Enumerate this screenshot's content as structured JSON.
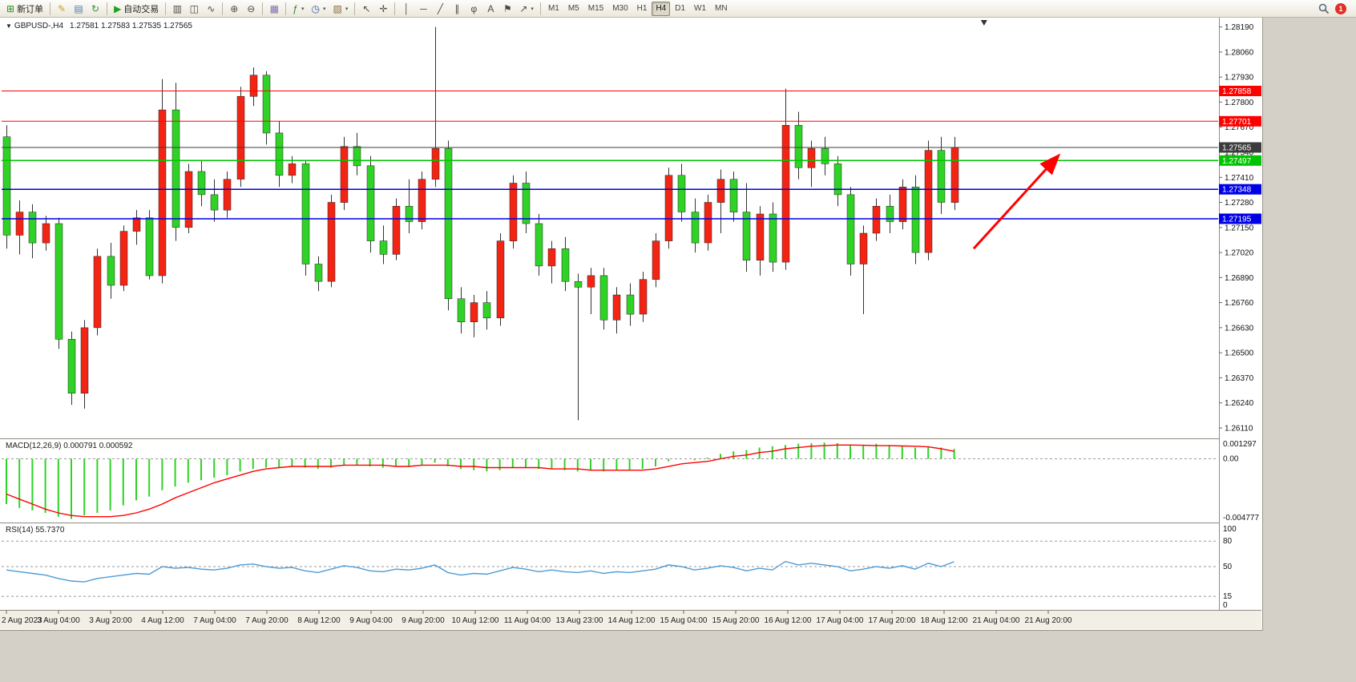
{
  "toolbar": {
    "notification_count": "1",
    "timeframes": [
      "M1",
      "M5",
      "M15",
      "M30",
      "H1",
      "H4",
      "D1",
      "W1",
      "MN"
    ],
    "active_timeframe": "H4",
    "groups": [
      {
        "name": "trade",
        "items": [
          {
            "name": "new-order",
            "glyph": "⊞",
            "glyph_color": "#1f8f1f",
            "label": "新订单"
          }
        ]
      },
      {
        "name": "quick-access",
        "items": [
          {
            "name": "metaeditor",
            "glyph": "✎",
            "glyph_color": "#c9a227"
          },
          {
            "name": "market-watch",
            "glyph": "▤",
            "glyph_color": "#4a7ab5"
          },
          {
            "name": "refresh",
            "glyph": "↻",
            "glyph_color": "#3a8f3a"
          }
        ]
      },
      {
        "name": "autotrade",
        "items": [
          {
            "name": "auto-trading",
            "glyph": "▶",
            "glyph_color": "#1fa11f",
            "label": "自动交易"
          }
        ]
      },
      {
        "name": "chart-type",
        "items": [
          {
            "name": "bar-chart",
            "glyph": "▥"
          },
          {
            "name": "candlestick-chart",
            "glyph": "◫"
          },
          {
            "name": "line-chart",
            "glyph": "∿"
          }
        ]
      },
      {
        "name": "zoom",
        "items": [
          {
            "name": "zoom-in",
            "glyph": "⊕"
          },
          {
            "name": "zoom-out",
            "glyph": "⊖"
          }
        ]
      },
      {
        "name": "windows",
        "items": [
          {
            "name": "tile-windows",
            "glyph": "▦",
            "glyph_color": "#7a6fb5"
          }
        ]
      },
      {
        "name": "chart-setup",
        "items": [
          {
            "name": "indicators",
            "glyph": "ƒ",
            "glyph_color": "#2e7d32",
            "dropdown": true
          },
          {
            "name": "periods",
            "glyph": "◷",
            "glyph_color": "#37579b",
            "dropdown": true
          },
          {
            "name": "templates",
            "glyph": "▧",
            "glyph_color": "#8a6d3b",
            "dropdown": true
          }
        ]
      },
      {
        "name": "pointer",
        "items": [
          {
            "name": "cursor",
            "glyph": "↖"
          },
          {
            "name": "crosshair",
            "glyph": "✛"
          }
        ]
      },
      {
        "name": "drawing-tools",
        "items": [
          {
            "name": "vertical-line",
            "glyph": "│"
          },
          {
            "name": "horizontal-line",
            "glyph": "─"
          },
          {
            "name": "trendline",
            "glyph": "╱"
          },
          {
            "name": "equidistant-channel",
            "glyph": "∥"
          },
          {
            "name": "fibonacci",
            "glyph": "φ"
          },
          {
            "name": "text",
            "glyph": "A"
          },
          {
            "name": "text-label",
            "glyph": "⚑"
          },
          {
            "name": "arrows",
            "glyph": "↗",
            "dropdown": true
          }
        ]
      }
    ]
  },
  "chart_data": [
    {
      "type": "candlestick",
      "symbol": "GBPUSD-,H4",
      "quote": "1.27581 1.27583 1.27535 1.27565",
      "ylim": [
        1.2606,
        1.2823
      ],
      "y_axis_labels": [
        "1.28190",
        "1.28060",
        "1.27930",
        "1.27800",
        "1.27670",
        "1.27540",
        "1.27410",
        "1.27280",
        "1.27150",
        "1.27020",
        "1.26890",
        "1.26760",
        "1.26630",
        "1.26500",
        "1.26370",
        "1.26240",
        "1.26110"
      ],
      "x_labels": [
        "2 Aug 2023",
        "3 Aug 04:00",
        "3 Aug 20:00",
        "4 Aug 12:00",
        "7 Aug 04:00",
        "7 Aug 20:00",
        "8 Aug 12:00",
        "9 Aug 04:00",
        "9 Aug 20:00",
        "10 Aug 12:00",
        "11 Aug 04:00",
        "13 Aug 23:00",
        "14 Aug 12:00",
        "15 Aug 04:00",
        "15 Aug 20:00",
        "16 Aug 12:00",
        "17 Aug 04:00",
        "17 Aug 20:00",
        "18 Aug 12:00",
        "21 Aug 04:00",
        "21 Aug 20:00"
      ],
      "up_color": "#f42414",
      "down_color": "#2fd326",
      "wick_color": "#333333",
      "ohlc": [
        [
          1.2762,
          1.2768,
          1.2704,
          1.2711
        ],
        [
          1.2711,
          1.2729,
          1.2701,
          1.2723
        ],
        [
          1.2723,
          1.2727,
          1.2699,
          1.2707
        ],
        [
          1.2707,
          1.2721,
          1.2703,
          1.2717
        ],
        [
          1.2717,
          1.272,
          1.2652,
          1.2657
        ],
        [
          1.2657,
          1.2661,
          1.2623,
          1.2629
        ],
        [
          1.2629,
          1.2667,
          1.2621,
          1.2663
        ],
        [
          1.2663,
          1.2704,
          1.2659,
          1.27
        ],
        [
          1.27,
          1.2707,
          1.2678,
          1.2685
        ],
        [
          1.2685,
          1.2716,
          1.2682,
          1.2713
        ],
        [
          1.2713,
          1.2724,
          1.2706,
          1.272
        ],
        [
          1.272,
          1.2724,
          1.2688,
          1.269
        ],
        [
          1.269,
          1.2792,
          1.2686,
          1.2776
        ],
        [
          1.2776,
          1.279,
          1.2708,
          1.2715
        ],
        [
          1.2715,
          1.2748,
          1.2712,
          1.2744
        ],
        [
          1.2744,
          1.275,
          1.2726,
          1.2732
        ],
        [
          1.2732,
          1.274,
          1.2718,
          1.2724
        ],
        [
          1.2724,
          1.2744,
          1.272,
          1.274
        ],
        [
          1.274,
          1.2788,
          1.2736,
          1.2783
        ],
        [
          1.2783,
          1.2798,
          1.2778,
          1.2794
        ],
        [
          1.2794,
          1.2796,
          1.2758,
          1.2764
        ],
        [
          1.2764,
          1.277,
          1.2736,
          1.2742
        ],
        [
          1.2742,
          1.2752,
          1.2738,
          1.2748
        ],
        [
          1.2748,
          1.275,
          1.269,
          1.2696
        ],
        [
          1.2696,
          1.27,
          1.2682,
          1.2687
        ],
        [
          1.2687,
          1.2732,
          1.2684,
          1.2728
        ],
        [
          1.2728,
          1.2762,
          1.2724,
          1.2757
        ],
        [
          1.2757,
          1.2764,
          1.2742,
          1.2747
        ],
        [
          1.2747,
          1.2752,
          1.2702,
          1.2708
        ],
        [
          1.2708,
          1.2716,
          1.2696,
          1.2701
        ],
        [
          1.2701,
          1.273,
          1.2698,
          1.2726
        ],
        [
          1.2726,
          1.274,
          1.2712,
          1.2718
        ],
        [
          1.2718,
          1.2744,
          1.2714,
          1.274
        ],
        [
          1.274,
          1.2819,
          1.2736,
          1.2756
        ],
        [
          1.2756,
          1.276,
          1.2672,
          1.2678
        ],
        [
          1.2678,
          1.2684,
          1.266,
          1.2666
        ],
        [
          1.2666,
          1.268,
          1.2658,
          1.2676
        ],
        [
          1.2676,
          1.2682,
          1.2662,
          1.2668
        ],
        [
          1.2668,
          1.2712,
          1.2664,
          1.2708
        ],
        [
          1.2708,
          1.2742,
          1.2704,
          1.2738
        ],
        [
          1.2738,
          1.2744,
          1.2712,
          1.2717
        ],
        [
          1.2717,
          1.2722,
          1.269,
          1.2695
        ],
        [
          1.2695,
          1.2708,
          1.2686,
          1.2704
        ],
        [
          1.2704,
          1.271,
          1.2682,
          1.2687
        ],
        [
          1.2687,
          1.2691,
          1.2615,
          1.2684
        ],
        [
          1.2684,
          1.2694,
          1.267,
          1.269
        ],
        [
          1.269,
          1.2694,
          1.2662,
          1.2667
        ],
        [
          1.2667,
          1.2684,
          1.266,
          1.268
        ],
        [
          1.268,
          1.2686,
          1.2664,
          1.267
        ],
        [
          1.267,
          1.2692,
          1.2666,
          1.2688
        ],
        [
          1.2688,
          1.2712,
          1.2684,
          1.2708
        ],
        [
          1.2708,
          1.2746,
          1.2704,
          1.2742
        ],
        [
          1.2742,
          1.2748,
          1.2718,
          1.2723
        ],
        [
          1.2723,
          1.273,
          1.2702,
          1.2707
        ],
        [
          1.2707,
          1.2732,
          1.2703,
          1.2728
        ],
        [
          1.2728,
          1.2745,
          1.2712,
          1.274
        ],
        [
          1.274,
          1.2744,
          1.2718,
          1.2723
        ],
        [
          1.2723,
          1.2738,
          1.2692,
          1.2698
        ],
        [
          1.2698,
          1.2726,
          1.269,
          1.2722
        ],
        [
          1.2722,
          1.2728,
          1.2692,
          1.2697
        ],
        [
          1.2697,
          1.2787,
          1.2693,
          1.2768
        ],
        [
          1.2768,
          1.2775,
          1.274,
          1.2746
        ],
        [
          1.2746,
          1.276,
          1.2736,
          1.2756
        ],
        [
          1.2756,
          1.2762,
          1.2742,
          1.2748
        ],
        [
          1.2748,
          1.2752,
          1.2726,
          1.2732
        ],
        [
          1.2732,
          1.2736,
          1.269,
          1.2696
        ],
        [
          1.2696,
          1.2716,
          1.267,
          1.2712
        ],
        [
          1.2712,
          1.273,
          1.2708,
          1.2726
        ],
        [
          1.2726,
          1.2732,
          1.2712,
          1.2718
        ],
        [
          1.2718,
          1.274,
          1.2714,
          1.2736
        ],
        [
          1.2736,
          1.2742,
          1.2696,
          1.2702
        ],
        [
          1.2702,
          1.276,
          1.2698,
          1.2755
        ],
        [
          1.2755,
          1.2762,
          1.2722,
          1.2728
        ],
        [
          1.2728,
          1.2762,
          1.2724,
          1.27565
        ]
      ],
      "hlines": [
        {
          "price": 1.27858,
          "label": "1.27858",
          "color": "#ff0000",
          "width": 1
        },
        {
          "price": 1.27701,
          "label": "1.27701",
          "color": "#ff0000",
          "width": 1
        },
        {
          "price": 1.27565,
          "label": "1.27565",
          "color": "#3c3c3c",
          "width": 1
        },
        {
          "price": 1.27497,
          "label": "1.27497",
          "color": "#00c400",
          "width": 1.5
        },
        {
          "price": 1.27348,
          "label": "1.27348",
          "color": "#0000e6",
          "width": 1.5
        },
        {
          "price": 1.27195,
          "label": "1.27195",
          "color": "#0000e6",
          "width": 1.5
        }
      ],
      "annotations": [
        {
          "type": "arrow",
          "from_bar": 74.5,
          "from_price": 1.2704,
          "to_bar": 81,
          "to_price": 1.2752,
          "color": "#ff0000"
        }
      ],
      "shift_marker_bar": 75.3
    },
    {
      "type": "bar",
      "label": "MACD(12,26,9)",
      "values_text": "0.000791 0.000592",
      "ylim": [
        -0.005,
        0.0015
      ],
      "hist_color": "#2fd326",
      "signal_color": "#ff0000",
      "axis_labels": [
        {
          "v": 0.001297,
          "t": "0.001297"
        },
        {
          "v": 0,
          "t": "0.00"
        },
        {
          "v": -0.004777,
          "t": "-0.004777"
        }
      ],
      "histogram": [
        -0.0036,
        -0.0039,
        -0.0041,
        -0.0043,
        -0.0046,
        -0.004777,
        -0.0045,
        -0.0043,
        -0.0041,
        -0.0037,
        -0.0033,
        -0.003,
        -0.0025,
        -0.0022,
        -0.0019,
        -0.0017,
        -0.0015,
        -0.0013,
        -0.001,
        -0.0008,
        -0.0007,
        -0.0007,
        -0.0006,
        -0.0007,
        -0.0008,
        -0.0007,
        -0.0005,
        -0.0005,
        -0.0006,
        -0.0007,
        -0.0006,
        -0.0006,
        -0.0005,
        -0.0003,
        -0.0006,
        -0.0008,
        -0.0009,
        -0.001,
        -0.0009,
        -0.0007,
        -0.0007,
        -0.0008,
        -0.0008,
        -0.0009,
        -0.001,
        -0.0009,
        -0.001,
        -0.0009,
        -0.0009,
        -0.0008,
        -0.0006,
        -0.0002,
        0.0,
        -0.0001,
        0.0001,
        0.0004,
        0.0006,
        0.0007,
        0.0009,
        0.001,
        0.0011,
        0.0012,
        0.00125,
        0.001297,
        0.00125,
        0.0011,
        0.0011,
        0.0012,
        0.0011,
        0.001,
        0.0009,
        0.001,
        0.0009,
        0.000791
      ],
      "signal": [
        -0.0028,
        -0.0032,
        -0.0036,
        -0.004,
        -0.0043,
        -0.0045,
        -0.0046,
        -0.0046,
        -0.0046,
        -0.0045,
        -0.0043,
        -0.004,
        -0.0036,
        -0.0031,
        -0.0027,
        -0.0023,
        -0.0019,
        -0.0016,
        -0.0013,
        -0.001,
        -0.0008,
        -0.0007,
        -0.0006,
        -0.0006,
        -0.0006,
        -0.0006,
        -0.0005,
        -0.0005,
        -0.0005,
        -0.0005,
        -0.0006,
        -0.0006,
        -0.0005,
        -0.0005,
        -0.0005,
        -0.0006,
        -0.0006,
        -0.0007,
        -0.0007,
        -0.0007,
        -0.0007,
        -0.0007,
        -0.0008,
        -0.0008,
        -0.0008,
        -0.0009,
        -0.0009,
        -0.0009,
        -0.0009,
        -0.0009,
        -0.0008,
        -0.0006,
        -0.0004,
        -0.0003,
        -0.0002,
        0.0,
        0.0002,
        0.0003,
        0.0005,
        0.0006,
        0.0008,
        0.0009,
        0.001,
        0.00105,
        0.0011,
        0.0011,
        0.00108,
        0.00105,
        0.00105,
        0.00102,
        0.001,
        0.00095,
        0.0008,
        0.000592
      ]
    },
    {
      "type": "line",
      "label": "RSI(14)",
      "value_text": "55.7370",
      "ylim": [
        0,
        100
      ],
      "line_color": "#4f9bd5",
      "levels": [
        80,
        50,
        15
      ],
      "axis_labels": [
        {
          "v": 100,
          "t": "100"
        },
        {
          "v": 80,
          "t": "80"
        },
        {
          "v": 50,
          "t": "50"
        },
        {
          "v": 15,
          "t": "15"
        },
        {
          "v": 0,
          "t": "0"
        }
      ],
      "values": [
        46,
        44,
        42,
        40,
        36,
        33,
        32,
        36,
        38,
        40,
        42,
        41,
        50,
        48,
        49,
        47,
        46,
        48,
        52,
        53,
        50,
        48,
        49,
        45,
        43,
        47,
        51,
        49,
        45,
        44,
        47,
        46,
        48,
        52,
        43,
        40,
        42,
        41,
        45,
        49,
        47,
        44,
        46,
        44,
        43,
        45,
        42,
        44,
        43,
        45,
        47,
        52,
        50,
        46,
        48,
        51,
        49,
        45,
        48,
        46,
        56,
        52,
        54,
        52,
        50,
        45,
        47,
        50,
        48,
        51,
        47,
        54,
        50,
        55.737
      ]
    }
  ]
}
